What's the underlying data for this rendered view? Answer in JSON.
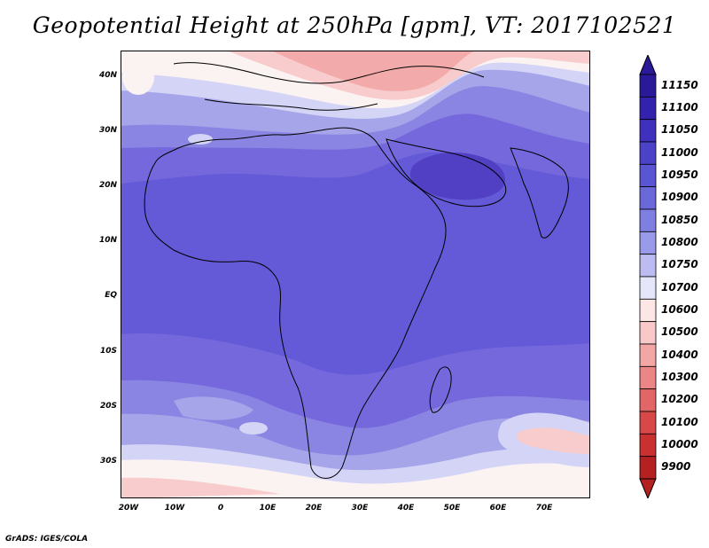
{
  "title": "Geopotential Height at 250hPa [gpm], VT: 2017102521",
  "credit": "GrADS: IGES/COLA",
  "lat_labels": [
    "40N",
    "30N",
    "20N",
    "10N",
    "EQ",
    "10S",
    "20S",
    "30S"
  ],
  "lon_labels": [
    "20W",
    "10W",
    "0",
    "10E",
    "20E",
    "30E",
    "40E",
    "50E",
    "60E",
    "70E"
  ],
  "colorbar": {
    "levels": [
      "11150",
      "11100",
      "11050",
      "11000",
      "10950",
      "10900",
      "10850",
      "10800",
      "10750",
      "10700",
      "10600",
      "10500",
      "10400",
      "10300",
      "10200",
      "10100",
      "10000",
      "9900"
    ],
    "colors": [
      "#2a1a9a",
      "#3322ad",
      "#3f30bd",
      "#4b42c8",
      "#5a55d2",
      "#6b68da",
      "#7f7fe2",
      "#9a9aea",
      "#bcbcf2",
      "#e6e6fb",
      "#fde6e6",
      "#f9c8c8",
      "#f3a6a6",
      "#ec8585",
      "#e36666",
      "#d94848",
      "#c93030",
      "#b52020"
    ]
  },
  "map_colors": {
    "h10950": "#6459d6",
    "h10900": "#7468dc",
    "h10850": "#8a84e2",
    "h10800": "#a7a5ea",
    "h10750": "#d4d4f6",
    "h10700": "#fbf2f2",
    "h10600": "#f8cccc",
    "h10500": "#f2aaaa",
    "h11000": "#5140c4",
    "coast": "#000000"
  }
}
